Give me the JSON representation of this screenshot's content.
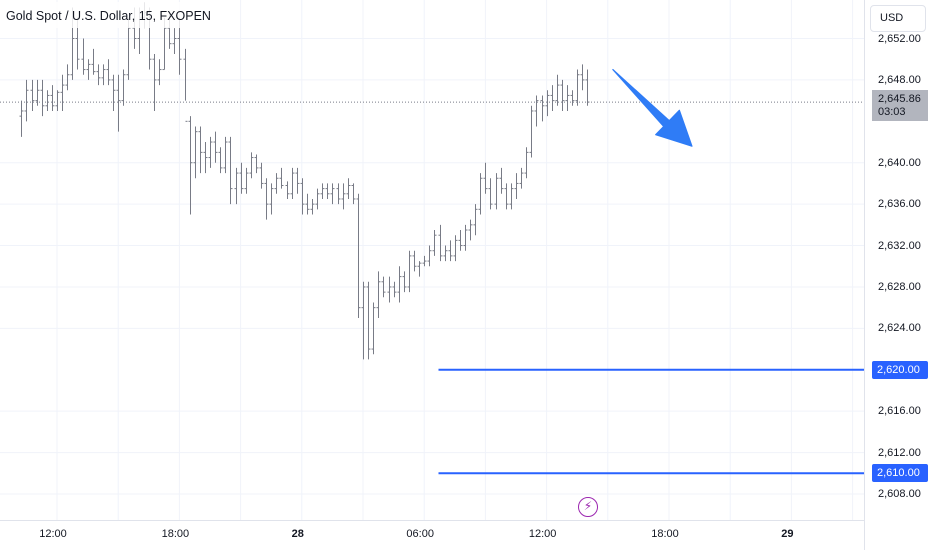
{
  "header": {
    "title": "Gold Spot / U.S. Dollar, 15, FXOPEN"
  },
  "price_scale": {
    "currency_button": "USD"
  },
  "colors": {
    "bars": "#787b86",
    "hlines": "#2962ff",
    "arrow": "#2f7cf6",
    "grid": "#f0f3fa",
    "event_icon": "#9c27b0"
  },
  "event_marker": {
    "icon": "lightning-icon"
  },
  "last_price_tag": {
    "price": "2,645.86",
    "countdown": "03:03"
  },
  "horizontal_line_labels": [
    "2,620.00",
    "2,610.00"
  ],
  "chart_data": {
    "type": "ohlc-bar",
    "symbol": "Gold Spot / U.S. Dollar",
    "interval": "15",
    "source": "FXOPEN",
    "currency": "USD",
    "y_ticks": [
      "2,652.00",
      "2,648.00",
      "2,640.00",
      "2,636.00",
      "2,632.00",
      "2,628.00",
      "2,624.00",
      "2,616.00",
      "2,612.00",
      "2,608.00"
    ],
    "y_tick_values": [
      2652,
      2648,
      2640,
      2636,
      2632,
      2628,
      2624,
      2616,
      2612,
      2608
    ],
    "x_ticks": [
      {
        "label": "12:00",
        "slot": 0,
        "bold": false
      },
      {
        "label": "18:00",
        "slot": 24,
        "bold": false
      },
      {
        "label": "28",
        "slot": 48,
        "bold": true
      },
      {
        "label": "06:00",
        "slot": 72,
        "bold": false
      },
      {
        "label": "12:00",
        "slot": 96,
        "bold": false
      },
      {
        "label": "18:00",
        "slot": 120,
        "bold": false
      },
      {
        "label": "29",
        "slot": 144,
        "bold": true
      }
    ],
    "ylim": [
      2605.5,
      2653.3
    ],
    "last_price": 2645.86,
    "countdown": "03:03",
    "horizontal_lines": [
      {
        "price": 2620.0,
        "label": "2,620.00",
        "start_slot": 75
      },
      {
        "price": 2610.0,
        "label": "2,610.00",
        "start_slot": 75
      }
    ],
    "arrow": {
      "from_slot": 109,
      "from_price": 2649.0,
      "to_slot": 124.5,
      "to_price": 2641.6
    },
    "bars_first_slot": -7,
    "bars": [
      [
        2644.5,
        2646.0,
        2642.5,
        2645.0
      ],
      [
        2645.0,
        2648.0,
        2644.0,
        2647.0
      ],
      [
        2647.0,
        2648.0,
        2645.0,
        2646.0
      ],
      [
        2646.0,
        2648.0,
        2645.5,
        2647.0
      ],
      [
        2647.0,
        2648.0,
        2644.5,
        2645.5
      ],
      [
        2645.5,
        2647.0,
        2645.0,
        2646.5
      ],
      [
        2646.5,
        2647.5,
        2645.0,
        2645.5
      ],
      [
        2645.5,
        2647.0,
        2645.0,
        2646.8
      ],
      [
        2646.8,
        2648.5,
        2645.0,
        2647.5
      ],
      [
        2647.5,
        2649.5,
        2647.0,
        2648.5
      ],
      [
        2648.5,
        2655.0,
        2648.0,
        2652.0
      ],
      [
        2652.0,
        2654.0,
        2649.0,
        2650.0
      ],
      [
        2650.0,
        2652.0,
        2648.5,
        2649.0
      ],
      [
        2649.0,
        2650.0,
        2648.0,
        2649.5
      ],
      [
        2649.5,
        2651.0,
        2648.5,
        2648.8
      ],
      [
        2648.8,
        2649.5,
        2647.5,
        2648.2
      ],
      [
        2648.2,
        2649.5,
        2647.5,
        2649.0
      ],
      [
        2649.0,
        2650.0,
        2647.5,
        2648.0
      ],
      [
        2648.0,
        2648.5,
        2645.0,
        2647.0
      ],
      [
        2647.0,
        2648.5,
        2643.0,
        2646.0
      ],
      [
        2646.0,
        2649.0,
        2645.5,
        2648.5
      ],
      [
        2648.5,
        2654.0,
        2648.0,
        2653.0
      ],
      [
        2653.0,
        2655.0,
        2651.0,
        2652.0
      ],
      [
        2652.0,
        2655.0,
        2650.5,
        2654.0
      ],
      [
        2654.0,
        2655.5,
        2653.0,
        2654.5
      ],
      [
        2654.5,
        2655.0,
        2649.0,
        2650.0
      ],
      [
        2650.0,
        2650.5,
        2645.0,
        2648.0
      ],
      [
        2648.0,
        2650.0,
        2647.5,
        2649.0
      ],
      [
        2649.0,
        2654.0,
        2649.0,
        2653.0
      ],
      [
        2653.0,
        2654.5,
        2651.0,
        2651.5
      ],
      [
        2651.5,
        2653.0,
        2650.5,
        2652.0
      ],
      [
        2652.0,
        2654.0,
        2648.5,
        2650.0
      ],
      [
        2650.0,
        2651.0,
        2646.0,
        2644.0
      ],
      [
        2644.0,
        2644.5,
        2635.0,
        2640.0
      ],
      [
        2640.0,
        2643.5,
        2638.5,
        2643.0
      ],
      [
        2643.0,
        2643.5,
        2639.0,
        2641.0
      ],
      [
        2641.0,
        2642.0,
        2639.0,
        2640.5
      ],
      [
        2640.5,
        2642.5,
        2639.5,
        2642.0
      ],
      [
        2642.0,
        2643.0,
        2640.0,
        2641.0
      ],
      [
        2641.0,
        2641.5,
        2639.0,
        2639.5
      ],
      [
        2639.5,
        2642.5,
        2639.0,
        2642.0
      ],
      [
        2642.0,
        2642.5,
        2636.0,
        2637.5
      ],
      [
        2637.5,
        2639.5,
        2636.0,
        2639.0
      ],
      [
        2639.0,
        2640.0,
        2637.0,
        2637.5
      ],
      [
        2637.5,
        2639.5,
        2637.0,
        2639.0
      ],
      [
        2639.0,
        2641.0,
        2638.5,
        2640.5
      ],
      [
        2640.5,
        2640.8,
        2639.0,
        2639.5
      ],
      [
        2639.5,
        2640.0,
        2637.5,
        2638.0
      ],
      [
        2638.0,
        2638.5,
        2634.5,
        2636.0
      ],
      [
        2636.0,
        2638.0,
        2635.0,
        2637.5
      ],
      [
        2637.5,
        2639.0,
        2637.0,
        2638.5
      ],
      [
        2638.5,
        2639.5,
        2637.5,
        2637.8
      ],
      [
        2637.8,
        2638.2,
        2636.5,
        2637.0
      ],
      [
        2637.0,
        2639.5,
        2636.5,
        2639.0
      ],
      [
        2639.0,
        2639.5,
        2637.0,
        2638.0
      ],
      [
        2638.0,
        2638.5,
        2635.0,
        2636.0
      ],
      [
        2636.0,
        2637.0,
        2635.0,
        2635.5
      ],
      [
        2635.5,
        2636.5,
        2635.0,
        2636.0
      ],
      [
        2636.0,
        2637.5,
        2635.5,
        2637.0
      ],
      [
        2637.0,
        2638.0,
        2636.5,
        2637.5
      ],
      [
        2637.5,
        2638.0,
        2636.5,
        2637.0
      ],
      [
        2637.0,
        2638.0,
        2636.0,
        2637.5
      ],
      [
        2637.5,
        2638.0,
        2636.0,
        2636.5
      ],
      [
        2636.5,
        2638.0,
        2635.5,
        2637.0
      ],
      [
        2637.0,
        2638.5,
        2636.5,
        2637.8
      ],
      [
        2637.8,
        2638.0,
        2636.0,
        2636.5
      ],
      [
        2636.5,
        2637.0,
        2625.0,
        2626.0
      ],
      [
        2626.0,
        2628.5,
        2621.0,
        2628.0
      ],
      [
        2628.0,
        2628.5,
        2621.0,
        2622.0
      ],
      [
        2622.0,
        2626.5,
        2621.5,
        2626.0
      ],
      [
        2626.0,
        2629.5,
        2625.0,
        2628.5
      ],
      [
        2628.5,
        2629.0,
        2627.0,
        2627.5
      ],
      [
        2627.5,
        2629.0,
        2626.5,
        2628.0
      ],
      [
        2628.0,
        2628.5,
        2627.0,
        2627.5
      ],
      [
        2627.5,
        2630.0,
        2626.5,
        2629.0
      ],
      [
        2629.0,
        2629.5,
        2627.5,
        2628.0
      ],
      [
        2628.0,
        2631.5,
        2627.5,
        2631.0
      ],
      [
        2631.0,
        2631.5,
        2629.5,
        2630.0
      ],
      [
        2630.0,
        2630.5,
        2629.0,
        2630.3
      ],
      [
        2630.3,
        2631.0,
        2630.0,
        2630.5
      ],
      [
        2630.5,
        2632.0,
        2630.0,
        2631.5
      ],
      [
        2631.5,
        2633.5,
        2631.0,
        2633.0
      ],
      [
        2633.0,
        2634.0,
        2630.5,
        2631.0
      ],
      [
        2631.0,
        2632.0,
        2630.5,
        2631.5
      ],
      [
        2631.5,
        2632.5,
        2630.5,
        2631.0
      ],
      [
        2631.0,
        2633.0,
        2630.5,
        2632.5
      ],
      [
        2632.5,
        2633.5,
        2631.5,
        2632.0
      ],
      [
        2632.0,
        2634.0,
        2631.5,
        2633.5
      ],
      [
        2633.5,
        2634.5,
        2632.5,
        2634.0
      ],
      [
        2634.0,
        2636.0,
        2633.0,
        2635.5
      ],
      [
        2635.5,
        2639.0,
        2635.0,
        2638.5
      ],
      [
        2638.5,
        2640.0,
        2637.0,
        2637.5
      ],
      [
        2637.5,
        2638.5,
        2635.5,
        2636.0
      ],
      [
        2636.0,
        2639.0,
        2635.5,
        2638.5
      ],
      [
        2638.5,
        2639.5,
        2637.0,
        2637.5
      ],
      [
        2637.5,
        2638.0,
        2635.5,
        2636.0
      ],
      [
        2636.0,
        2638.0,
        2635.5,
        2637.5
      ],
      [
        2637.5,
        2639.0,
        2636.5,
        2638.0
      ],
      [
        2638.0,
        2639.5,
        2637.5,
        2639.0
      ],
      [
        2639.0,
        2641.5,
        2638.5,
        2641.0
      ],
      [
        2641.0,
        2645.5,
        2640.5,
        2645.0
      ],
      [
        2645.0,
        2646.5,
        2643.5,
        2646.0
      ],
      [
        2646.0,
        2646.5,
        2644.0,
        2645.5
      ],
      [
        2645.5,
        2647.0,
        2644.5,
        2646.5
      ],
      [
        2646.5,
        2647.5,
        2645.0,
        2646.0
      ],
      [
        2646.0,
        2648.5,
        2645.5,
        2647.5
      ],
      [
        2647.5,
        2648.0,
        2645.0,
        2646.0
      ],
      [
        2646.0,
        2647.5,
        2645.0,
        2646.5
      ],
      [
        2646.5,
        2647.0,
        2645.5,
        2646.0
      ],
      [
        2646.0,
        2649.0,
        2645.5,
        2648.5
      ],
      [
        2648.5,
        2649.5,
        2647.0,
        2648.0
      ],
      [
        2648.0,
        2649.0,
        2645.5,
        2645.86
      ]
    ]
  }
}
